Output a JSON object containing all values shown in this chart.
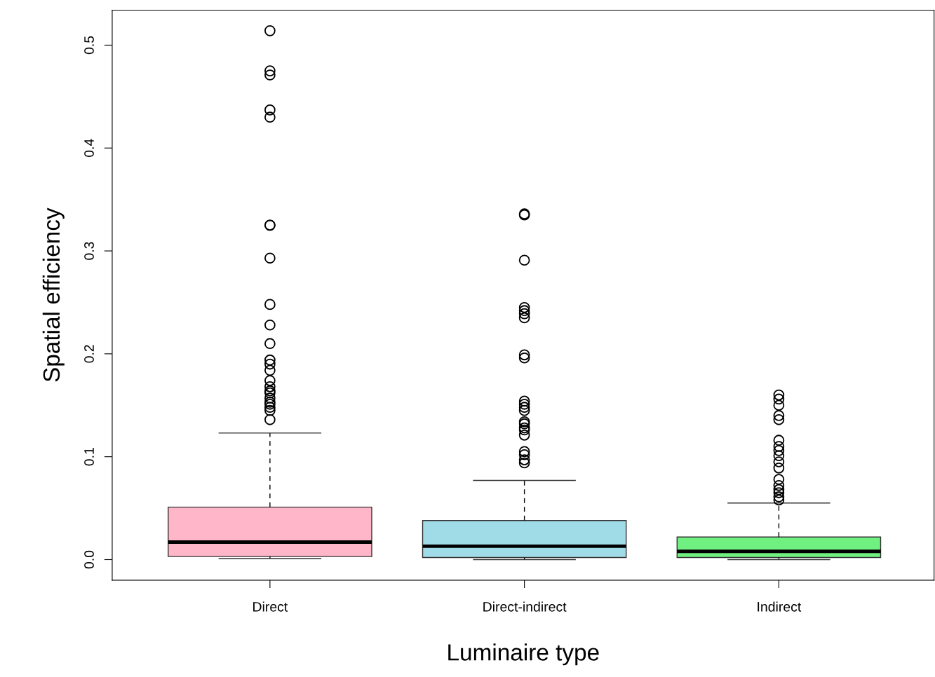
{
  "chart_data": {
    "type": "box",
    "xlabel": "Luminaire type",
    "ylabel": "Spatial efficiency",
    "categories": [
      "Direct",
      "Direct-indirect",
      "Indirect"
    ],
    "colors": [
      "#ffb6c8",
      "#a0dce8",
      "#70f080"
    ],
    "boxes": [
      {
        "low": 0.001,
        "q1": 0.003,
        "median": 0.017,
        "q3": 0.051,
        "high": 0.123,
        "outliers": [
          0.514,
          0.475,
          0.471,
          0.437,
          0.43,
          0.325,
          0.325,
          0.293,
          0.248,
          0.228,
          0.21,
          0.194,
          0.19,
          0.184,
          0.174,
          0.168,
          0.164,
          0.162,
          0.157,
          0.153,
          0.151,
          0.148,
          0.145,
          0.136
        ]
      },
      {
        "low": 0.0,
        "q1": 0.002,
        "median": 0.013,
        "q3": 0.038,
        "high": 0.077,
        "outliers": [
          0.336,
          0.335,
          0.291,
          0.245,
          0.242,
          0.239,
          0.235,
          0.199,
          0.196,
          0.154,
          0.151,
          0.148,
          0.145,
          0.134,
          0.132,
          0.128,
          0.126,
          0.121,
          0.105,
          0.102,
          0.097,
          0.094
        ]
      },
      {
        "low": 0.0,
        "q1": 0.002,
        "median": 0.008,
        "q3": 0.022,
        "high": 0.055,
        "outliers": [
          0.16,
          0.156,
          0.15,
          0.14,
          0.136,
          0.116,
          0.11,
          0.106,
          0.101,
          0.095,
          0.089,
          0.078,
          0.072,
          0.068,
          0.065,
          0.061,
          0.058
        ]
      }
    ],
    "ylim": [
      -0.02,
      0.534
    ],
    "yticks": [
      {
        "value": 0,
        "label": "0.0"
      },
      {
        "value": 0.1,
        "label": "0.1"
      },
      {
        "value": 0.2,
        "label": "0.2"
      },
      {
        "value": 0.3,
        "label": "0.3"
      },
      {
        "value": 0.4,
        "label": "0.4"
      },
      {
        "value": 0.5,
        "label": "0.5"
      }
    ]
  }
}
